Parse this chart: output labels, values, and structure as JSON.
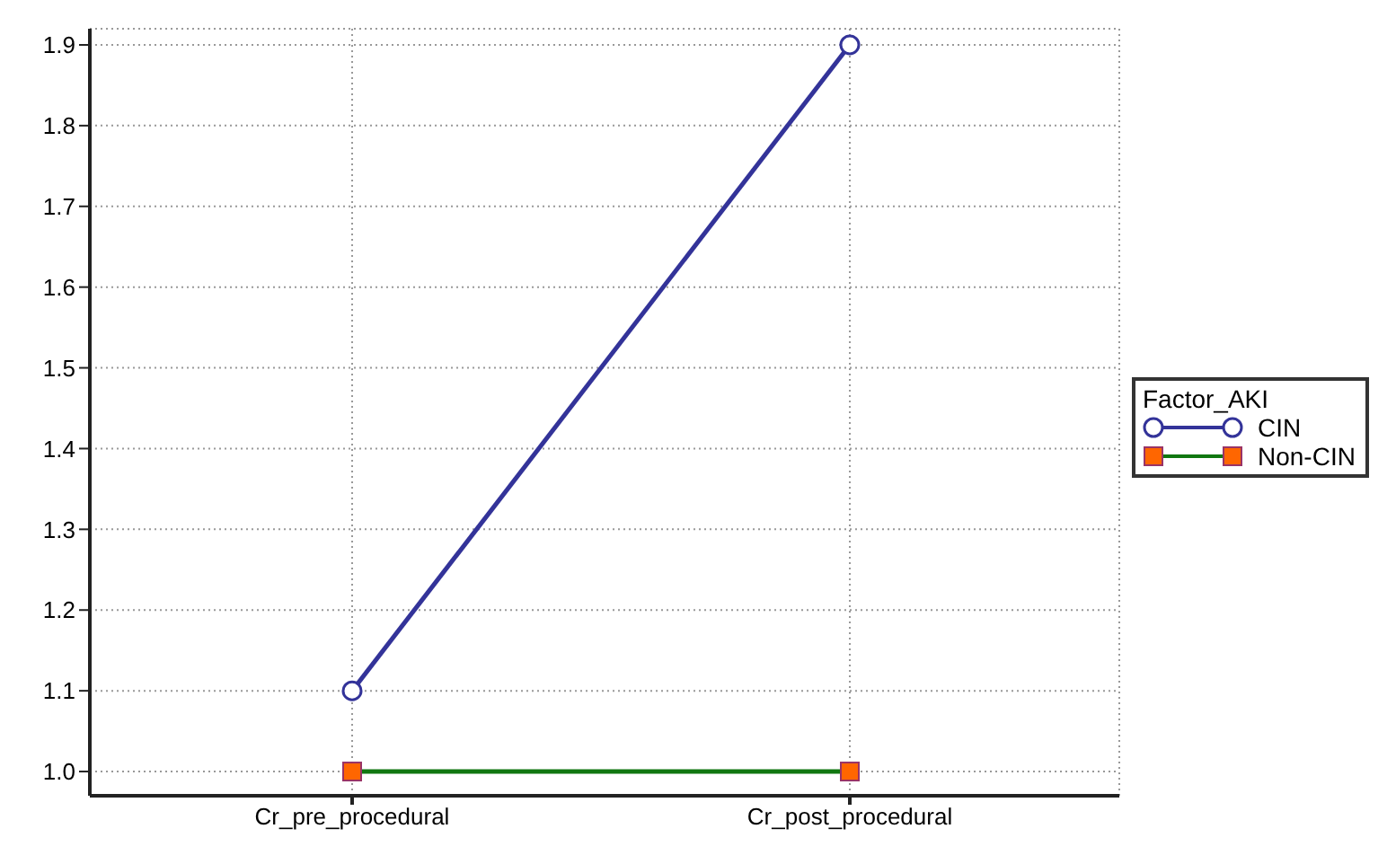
{
  "chart_data": {
    "type": "line",
    "categories": [
      "Cr_pre_procedural",
      "Cr_post_procedural"
    ],
    "series": [
      {
        "name": "CIN",
        "color": "#333399",
        "values": [
          1.1,
          1.9
        ],
        "marker": "circle"
      },
      {
        "name": "Non-CIN",
        "color": "#117711",
        "values": [
          1.0,
          1.0
        ],
        "marker": "square"
      }
    ],
    "ylim": [
      0.97,
      1.92
    ],
    "yticks": [
      {
        "value": 1.0,
        "label": "1.0"
      },
      {
        "value": 1.1,
        "label": "1.1"
      },
      {
        "value": 1.2,
        "label": "1.2"
      },
      {
        "value": 1.3,
        "label": "1.3"
      },
      {
        "value": 1.4,
        "label": "1.4"
      },
      {
        "value": 1.5,
        "label": "1.5"
      },
      {
        "value": 1.6,
        "label": "1.6"
      },
      {
        "value": 1.7,
        "label": "1.7"
      },
      {
        "value": 1.8,
        "label": "1.8"
      },
      {
        "value": 1.9,
        "label": "1.9"
      }
    ],
    "grid": true,
    "legend": "right",
    "legend_title": "Factor_AKI",
    "line_style": "solid"
  }
}
